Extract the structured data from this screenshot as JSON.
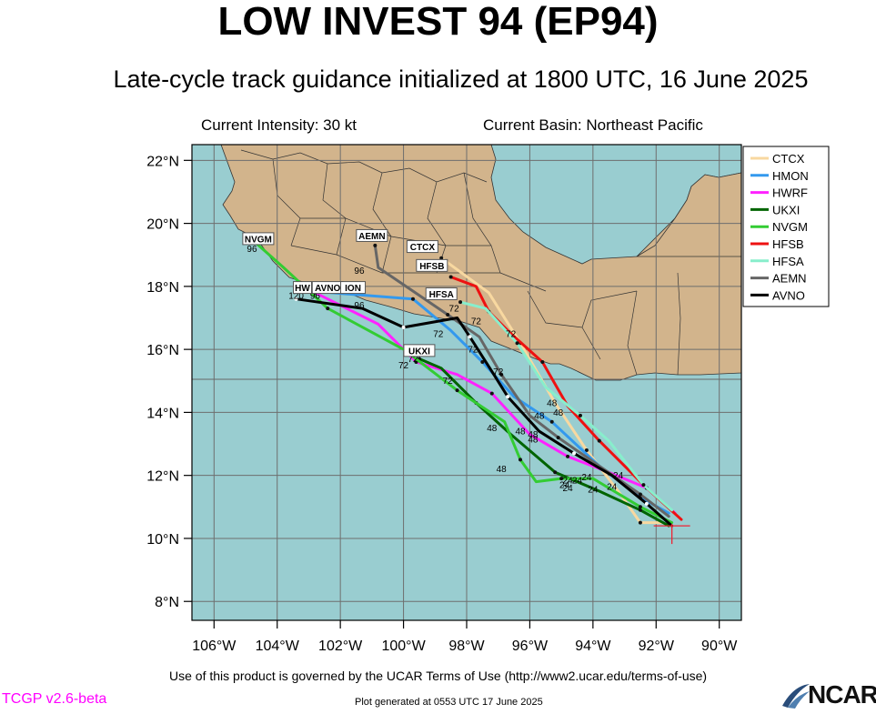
{
  "header": {
    "title": "LOW INVEST 94 (EP94)",
    "subtitle": "Late-cycle track guidance initialized at 1800 UTC, 16 June 2025",
    "intensity": "Current Intensity: 30 kt",
    "basin": "Current Basin: Northeast Pacific"
  },
  "footer": {
    "terms": "Use of this product is governed by the UCAR Terms of Use (http://www2.ucar.edu/terms-of-use)",
    "version": "TCGP v2.6-beta",
    "generated": "Plot generated at 0553 UTC   17 June 2025",
    "logo": "NCAR"
  },
  "colors": {
    "ocean": "#99cdd0",
    "land": "#d2b48c",
    "grid": "#6e6e6e"
  },
  "axes": {
    "lon_ticks": [
      {
        "lon": -106,
        "label": "106°W"
      },
      {
        "lon": -104,
        "label": "104°W"
      },
      {
        "lon": -102,
        "label": "102°W"
      },
      {
        "lon": -100,
        "label": "100°W"
      },
      {
        "lon": -98,
        "label": "98°W"
      },
      {
        "lon": -96,
        "label": "96°W"
      },
      {
        "lon": -94,
        "label": "94°W"
      },
      {
        "lon": -92,
        "label": "92°W"
      },
      {
        "lon": -90,
        "label": "90°W"
      }
    ],
    "lat_ticks": [
      {
        "lat": 22,
        "label": "22°N"
      },
      {
        "lat": 20,
        "label": "20°N"
      },
      {
        "lat": 18,
        "label": "18°N"
      },
      {
        "lat": 16,
        "label": "16°N"
      },
      {
        "lat": 14,
        "label": "14°N"
      },
      {
        "lat": 12,
        "label": "12°N"
      },
      {
        "lat": 10,
        "label": "10°N"
      },
      {
        "lat": 8,
        "label": "8°N"
      }
    ],
    "lon_range": [
      -106.7,
      -89.3
    ],
    "lat_range": [
      7.4,
      22.5
    ]
  },
  "storm_center": {
    "lon": -91.5,
    "lat": 10.4
  },
  "models": [
    {
      "name": "CTCX",
      "color": "#f8d8a0",
      "label": "CTCX",
      "track": [
        [
          -91.8,
          10.5
        ],
        [
          -92.5,
          10.5
        ],
        [
          -93.2,
          11.5
        ],
        [
          -94.2,
          12.8
        ],
        [
          -95.2,
          14.3
        ],
        [
          -96.3,
          16.2
        ],
        [
          -97.3,
          17.8
        ],
        [
          -98.8,
          18.9
        ]
      ]
    },
    {
      "name": "HMON",
      "color": "#3399ee",
      "label": "HMON",
      "track": [
        [
          -91.6,
          10.8
        ],
        [
          -92.5,
          11.3
        ],
        [
          -93.8,
          12.3
        ],
        [
          -95.3,
          13.7
        ],
        [
          -96.5,
          14.5
        ],
        [
          -97.5,
          15.6
        ],
        [
          -98.5,
          16.6
        ],
        [
          -99.7,
          17.6
        ],
        [
          -102.3,
          17.8
        ]
      ]
    },
    {
      "name": "HWRF",
      "color": "#ff22ff",
      "label": "HWRF",
      "track": [
        [
          -91.4,
          10.8
        ],
        [
          -92.3,
          11.6
        ],
        [
          -93.5,
          12.1
        ],
        [
          -94.8,
          12.6
        ],
        [
          -96.0,
          13.3
        ],
        [
          -97.2,
          14.6
        ],
        [
          -98.3,
          15.2
        ],
        [
          -99.6,
          15.6
        ],
        [
          -100.8,
          16.8
        ],
        [
          -102.8,
          17.8
        ]
      ]
    },
    {
      "name": "UKXI",
      "color": "#006400",
      "label": "UKXI",
      "track": [
        [
          -91.6,
          10.4
        ],
        [
          -92.5,
          10.9
        ],
        [
          -93.8,
          11.5
        ],
        [
          -95.2,
          12.1
        ],
        [
          -96.6,
          13.3
        ],
        [
          -97.7,
          14.3
        ],
        [
          -98.8,
          15.4
        ],
        [
          -99.5,
          15.7
        ]
      ]
    },
    {
      "name": "NVGM",
      "color": "#33cc33",
      "label": "NVGM",
      "track": [
        [
          -91.5,
          10.5
        ],
        [
          -92.5,
          11.0
        ],
        [
          -94.0,
          11.9
        ],
        [
          -95.0,
          11.9
        ],
        [
          -95.8,
          11.8
        ],
        [
          -96.3,
          12.5
        ],
        [
          -96.8,
          13.7
        ],
        [
          -98.3,
          14.7
        ],
        [
          -100.0,
          16.0
        ],
        [
          -102.4,
          17.3
        ],
        [
          -103.8,
          18.6
        ],
        [
          -104.7,
          19.4
        ]
      ]
    },
    {
      "name": "HFSB",
      "color": "#ee1111",
      "label": "HFSB",
      "track": [
        [
          -91.2,
          10.6
        ],
        [
          -92.3,
          11.6
        ],
        [
          -93.1,
          12.4
        ],
        [
          -93.8,
          13.1
        ],
        [
          -94.8,
          14.2
        ],
        [
          -95.6,
          15.6
        ],
        [
          -96.6,
          16.5
        ],
        [
          -97.3,
          17.2
        ],
        [
          -97.7,
          18.0
        ],
        [
          -98.5,
          18.3
        ]
      ]
    },
    {
      "name": "HFSA",
      "color": "#88eecc",
      "label": "HFSA",
      "track": [
        [
          -91.5,
          10.9
        ],
        [
          -92.4,
          11.7
        ],
        [
          -93.5,
          13.1
        ],
        [
          -94.4,
          13.9
        ],
        [
          -95.5,
          14.8
        ],
        [
          -96.4,
          16.2
        ],
        [
          -97.4,
          17.3
        ],
        [
          -98.2,
          17.5
        ]
      ]
    },
    {
      "name": "AEMN",
      "color": "#666666",
      "label": "AEMN",
      "track": [
        [
          -91.6,
          10.7
        ],
        [
          -92.5,
          11.4
        ],
        [
          -93.8,
          12.3
        ],
        [
          -95.1,
          13.2
        ],
        [
          -96.0,
          13.9
        ],
        [
          -96.9,
          15.2
        ],
        [
          -97.6,
          16.4
        ],
        [
          -98.6,
          17.1
        ],
        [
          -100.8,
          18.6
        ],
        [
          -100.9,
          19.3
        ]
      ]
    },
    {
      "name": "AVNO",
      "color": "#000000",
      "label": "AVNO",
      "track": [
        [
          -91.5,
          10.4
        ],
        [
          -92.3,
          11.1
        ],
        [
          -93.4,
          12.0
        ],
        [
          -94.6,
          12.7
        ],
        [
          -95.7,
          13.4
        ],
        [
          -96.7,
          14.5
        ],
        [
          -97.2,
          15.3
        ],
        [
          -97.9,
          16.4
        ],
        [
          -98.3,
          17.0
        ],
        [
          -100.0,
          16.7
        ],
        [
          -101.3,
          17.3
        ],
        [
          -103.4,
          17.6
        ]
      ]
    }
  ],
  "model_labels": [
    {
      "text": "NVGM",
      "lon": -104.6,
      "lat": 19.5
    },
    {
      "text": "AEMN",
      "lon": -101.0,
      "lat": 19.6
    },
    {
      "text": "CTCX",
      "lon": -99.4,
      "lat": 19.25
    },
    {
      "text": "HFSB",
      "lon": -99.1,
      "lat": 18.65
    },
    {
      "text": "HFSA",
      "lon": -98.8,
      "lat": 17.75
    },
    {
      "text": "HW",
      "lon": -103.2,
      "lat": 17.95
    },
    {
      "text": "AVNO",
      "lon": -102.4,
      "lat": 17.95
    },
    {
      "text": "ION",
      "lon": -101.6,
      "lat": 17.95
    },
    {
      "text": "UKXI",
      "lon": -99.5,
      "lat": 15.95
    }
  ],
  "hour_labels": [
    {
      "text": "96",
      "lon": -104.8,
      "lat": 19.1
    },
    {
      "text": "96",
      "lon": -101.4,
      "lat": 18.4
    },
    {
      "text": "120",
      "lon": -103.4,
      "lat": 17.6
    },
    {
      "text": "96",
      "lon": -102.8,
      "lat": 17.6
    },
    {
      "text": "96",
      "lon": -101.4,
      "lat": 17.3
    },
    {
      "text": "72",
      "lon": -98.4,
      "lat": 17.2
    },
    {
      "text": "72",
      "lon": -97.7,
      "lat": 16.8
    },
    {
      "text": "72",
      "lon": -98.9,
      "lat": 16.4
    },
    {
      "text": "72",
      "lon": -96.6,
      "lat": 16.4
    },
    {
      "text": "72",
      "lon": -97.8,
      "lat": 15.9
    },
    {
      "text": "72",
      "lon": -99.7,
      "lat": 15.6
    },
    {
      "text": "72",
      "lon": -100.0,
      "lat": 15.4
    },
    {
      "text": "72",
      "lon": -97.0,
      "lat": 15.2
    },
    {
      "text": "72",
      "lon": -98.6,
      "lat": 14.9
    },
    {
      "text": "48",
      "lon": -95.3,
      "lat": 14.2
    },
    {
      "text": "48",
      "lon": -95.1,
      "lat": 13.9
    },
    {
      "text": "48",
      "lon": -95.7,
      "lat": 13.8
    },
    {
      "text": "48",
      "lon": -97.2,
      "lat": 13.4
    },
    {
      "text": "48",
      "lon": -96.3,
      "lat": 13.3
    },
    {
      "text": "48",
      "lon": -95.9,
      "lat": 13.2
    },
    {
      "text": "48",
      "lon": -95.9,
      "lat": 13.05
    },
    {
      "text": "48",
      "lon": -96.9,
      "lat": 12.1
    },
    {
      "text": "24",
      "lon": -93.2,
      "lat": 11.9
    },
    {
      "text": "24",
      "lon": -94.2,
      "lat": 11.85
    },
    {
      "text": "24",
      "lon": -94.5,
      "lat": 11.75
    },
    {
      "text": "24",
      "lon": -94.8,
      "lat": 11.75
    },
    {
      "text": "24",
      "lon": -93.4,
      "lat": 11.55
    },
    {
      "text": "24",
      "lon": -94.9,
      "lat": 11.6
    },
    {
      "text": "24",
      "lon": -94.0,
      "lat": 11.45
    },
    {
      "text": "24",
      "lon": -94.8,
      "lat": 11.5
    }
  ],
  "legend": {
    "entries": [
      {
        "label": "CTCX",
        "color": "#f8d8a0"
      },
      {
        "label": "HMON",
        "color": "#3399ee"
      },
      {
        "label": "HWRF",
        "color": "#ff22ff"
      },
      {
        "label": "UKXI",
        "color": "#006400"
      },
      {
        "label": "NVGM",
        "color": "#33cc33"
      },
      {
        "label": "HFSB",
        "color": "#ee1111"
      },
      {
        "label": "HFSA",
        "color": "#88eecc"
      },
      {
        "label": "AEMN",
        "color": "#666666"
      },
      {
        "label": "AVNO",
        "color": "#000000"
      }
    ]
  }
}
